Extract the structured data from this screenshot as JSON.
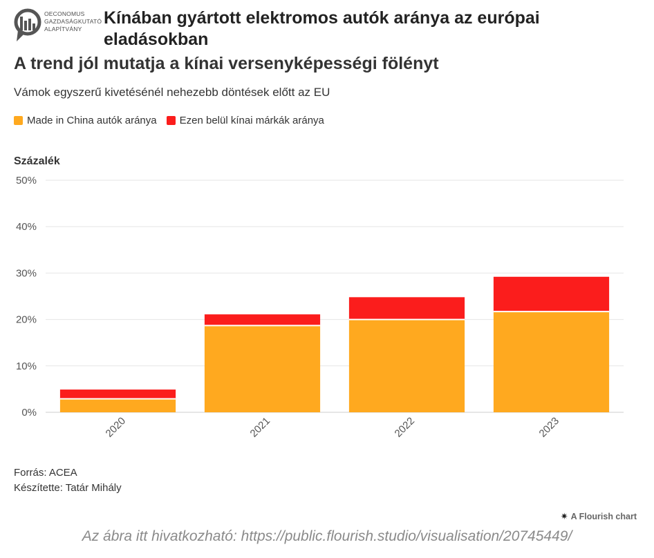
{
  "header": {
    "logo_text": "OECONOMUS\nGAZDASÁGKUTATÓ\nALAPÍTVÁNY",
    "title": "Kínában gyártott elektromos autók aránya az európai eladásokban",
    "subtitle": "A trend jól mutatja a kínai versenyképességi fölényt",
    "description": "Vámok egyszerű kivetésénél nehezebb döntések előtt az EU"
  },
  "legend": [
    {
      "label": "Made in China autók aránya",
      "color": "#FFA91F"
    },
    {
      "label": "Ezen belül kínai márkák aránya",
      "color": "#FB1D1C"
    }
  ],
  "chart_data": {
    "type": "bar",
    "stacked": true,
    "categories": [
      "2020",
      "2021",
      "2022",
      "2023"
    ],
    "series": [
      {
        "name": "Made in China autók aránya",
        "color": "#FFA91F",
        "values": [
          2.9,
          18.7,
          20.0,
          21.7
        ]
      },
      {
        "name": "Ezen belül kínai márkák aránya",
        "color": "#FB1D1C",
        "values": [
          2.0,
          2.4,
          4.8,
          7.5
        ]
      }
    ],
    "ylabel": "Százalék",
    "ylim": [
      0,
      50
    ],
    "yticks": [
      0,
      10,
      20,
      30,
      40,
      50
    ],
    "ytick_labels": [
      "0%",
      "10%",
      "20%",
      "30%",
      "40%",
      "50%"
    ],
    "grid": true,
    "legend_position": "top-left"
  },
  "footer": {
    "source": "Forrás: ACEA",
    "author": "Készítette: Tatár Mihály",
    "flourish_label": "A Flourish chart",
    "link_note": "Az ábra itt hivatkozható: https://public.flourish.studio/visualisation/20745449/"
  }
}
